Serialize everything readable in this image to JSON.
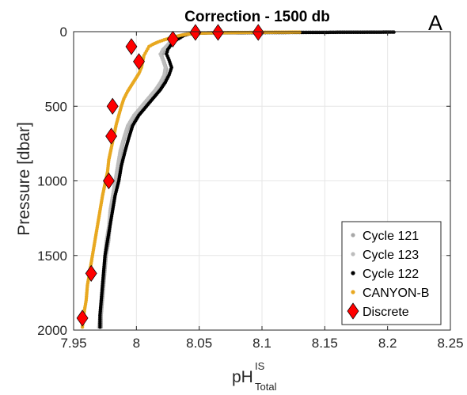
{
  "chart_data": {
    "type": "scatter",
    "title": "Correction - 1500 db",
    "panel_label": "A",
    "xlabel": {
      "main": "pH",
      "superscript": "IS",
      "subscript": "Total"
    },
    "ylabel": "Pressure [dbar]",
    "xlim": [
      7.95,
      8.25
    ],
    "ylim": [
      0,
      2000
    ],
    "y_reversed": true,
    "x_ticks": [
      7.95,
      8,
      8.05,
      8.1,
      8.15,
      8.2,
      8.25
    ],
    "x_tick_labels": [
      "7.95",
      "8",
      "8.05",
      "8.1",
      "8.15",
      "8.2",
      "8.25"
    ],
    "y_ticks": [
      0,
      500,
      1000,
      1500,
      2000
    ],
    "y_tick_labels": [
      "0",
      "500",
      "1000",
      "1500",
      "2000"
    ],
    "grid": true,
    "legend_position": "bottom-right",
    "series": [
      {
        "name": "Cycle 121",
        "marker": "dot",
        "color": "#a8a8a8",
        "points": [
          [
            8.19,
            3
          ],
          [
            8.17,
            4
          ],
          [
            8.15,
            4
          ],
          [
            8.13,
            5
          ],
          [
            8.11,
            5
          ],
          [
            8.09,
            6
          ],
          [
            8.07,
            6
          ],
          [
            8.06,
            7
          ],
          [
            8.05,
            8
          ],
          [
            8.045,
            10
          ],
          [
            8.04,
            14
          ],
          [
            8.037,
            20
          ],
          [
            8.035,
            30
          ],
          [
            8.033,
            45
          ],
          [
            8.03,
            60
          ],
          [
            8.027,
            80
          ],
          [
            8.025,
            100
          ],
          [
            8.023,
            130
          ],
          [
            8.02,
            160
          ],
          [
            8.022,
            200
          ],
          [
            8.024,
            250
          ],
          [
            8.023,
            300
          ],
          [
            8.02,
            350
          ],
          [
            8.016,
            400
          ],
          [
            8.011,
            450
          ],
          [
            8.006,
            500
          ],
          [
            8.0,
            560
          ],
          [
            7.995,
            620
          ],
          [
            7.991,
            700
          ],
          [
            7.988,
            800
          ],
          [
            7.986,
            900
          ],
          [
            7.984,
            1000
          ],
          [
            7.982,
            1100
          ],
          [
            7.98,
            1200
          ],
          [
            7.979,
            1300
          ],
          [
            7.978,
            1400
          ],
          [
            7.976,
            1500
          ],
          [
            7.975,
            1600
          ],
          [
            7.974,
            1700
          ],
          [
            7.973,
            1800
          ],
          [
            7.972,
            1900
          ],
          [
            7.972,
            1980
          ]
        ]
      },
      {
        "name": "Cycle 123",
        "marker": "dot",
        "color": "#bdbdbd",
        "points": [
          [
            8.2,
            3
          ],
          [
            8.18,
            4
          ],
          [
            8.16,
            5
          ],
          [
            8.14,
            5
          ],
          [
            8.12,
            6
          ],
          [
            8.1,
            6
          ],
          [
            8.08,
            7
          ],
          [
            8.065,
            8
          ],
          [
            8.05,
            10
          ],
          [
            8.043,
            15
          ],
          [
            8.038,
            25
          ],
          [
            8.034,
            40
          ],
          [
            8.03,
            55
          ],
          [
            8.026,
            75
          ],
          [
            8.024,
            95
          ],
          [
            8.021,
            120
          ],
          [
            8.019,
            150
          ],
          [
            8.021,
            190
          ],
          [
            8.023,
            240
          ],
          [
            8.022,
            290
          ],
          [
            8.019,
            340
          ],
          [
            8.015,
            390
          ],
          [
            8.01,
            440
          ],
          [
            8.004,
            500
          ],
          [
            7.998,
            560
          ],
          [
            7.993,
            630
          ],
          [
            7.99,
            710
          ],
          [
            7.987,
            800
          ],
          [
            7.985,
            900
          ],
          [
            7.983,
            1000
          ],
          [
            7.981,
            1100
          ],
          [
            7.979,
            1200
          ],
          [
            7.978,
            1300
          ],
          [
            7.976,
            1400
          ],
          [
            7.975,
            1500
          ],
          [
            7.974,
            1600
          ],
          [
            7.973,
            1700
          ],
          [
            7.972,
            1800
          ],
          [
            7.971,
            1900
          ],
          [
            7.97,
            1980
          ]
        ]
      },
      {
        "name": "Cycle 122",
        "marker": "dot",
        "color": "#000000",
        "points": [
          [
            8.205,
            3
          ],
          [
            8.18,
            4
          ],
          [
            8.16,
            4
          ],
          [
            8.15,
            5
          ],
          [
            8.13,
            5
          ],
          [
            8.1,
            6
          ],
          [
            8.08,
            7
          ],
          [
            8.06,
            8
          ],
          [
            8.048,
            10
          ],
          [
            8.042,
            15
          ],
          [
            8.038,
            25
          ],
          [
            8.035,
            40
          ],
          [
            8.032,
            55
          ],
          [
            8.029,
            75
          ],
          [
            8.027,
            95
          ],
          [
            8.025,
            120
          ],
          [
            8.024,
            150
          ],
          [
            8.026,
            190
          ],
          [
            8.028,
            240
          ],
          [
            8.026,
            290
          ],
          [
            8.023,
            340
          ],
          [
            8.019,
            390
          ],
          [
            8.014,
            440
          ],
          [
            8.008,
            500
          ],
          [
            8.002,
            560
          ],
          [
            7.997,
            630
          ],
          [
            7.994,
            710
          ],
          [
            7.991,
            800
          ],
          [
            7.988,
            900
          ],
          [
            7.986,
            1000
          ],
          [
            7.983,
            1100
          ],
          [
            7.981,
            1200
          ],
          [
            7.979,
            1300
          ],
          [
            7.977,
            1400
          ],
          [
            7.975,
            1500
          ],
          [
            7.974,
            1600
          ],
          [
            7.973,
            1700
          ],
          [
            7.972,
            1800
          ],
          [
            7.971,
            1900
          ],
          [
            7.971,
            1980
          ]
        ]
      },
      {
        "name": "CANYON-B",
        "marker": "dot",
        "color": "#e8a820",
        "points": [
          [
            8.13,
            3
          ],
          [
            8.11,
            4
          ],
          [
            8.095,
            5
          ],
          [
            8.08,
            6
          ],
          [
            8.07,
            7
          ],
          [
            8.06,
            8
          ],
          [
            8.05,
            10
          ],
          [
            8.042,
            15
          ],
          [
            8.035,
            25
          ],
          [
            8.028,
            40
          ],
          [
            8.022,
            55
          ],
          [
            8.017,
            70
          ],
          [
            8.013,
            85
          ],
          [
            8.01,
            100
          ],
          [
            8.008,
            130
          ],
          [
            8.006,
            160
          ],
          [
            8.005,
            200
          ],
          [
            8.004,
            240
          ],
          [
            8.002,
            280
          ],
          [
            7.999,
            320
          ],
          [
            7.996,
            360
          ],
          [
            7.993,
            400
          ],
          [
            7.99,
            450
          ],
          [
            7.988,
            500
          ],
          [
            7.986,
            560
          ],
          [
            7.984,
            620
          ],
          [
            7.982,
            700
          ],
          [
            7.98,
            780
          ],
          [
            7.978,
            860
          ],
          [
            7.977,
            940
          ],
          [
            7.975,
            1020
          ],
          [
            7.973,
            1100
          ],
          [
            7.971,
            1200
          ],
          [
            7.969,
            1300
          ],
          [
            7.967,
            1400
          ],
          [
            7.965,
            1500
          ],
          [
            7.963,
            1600
          ],
          [
            7.961,
            1700
          ],
          [
            7.96,
            1800
          ],
          [
            7.958,
            1900
          ],
          [
            7.957,
            1980
          ]
        ]
      },
      {
        "name": "Discrete",
        "marker": "diamond",
        "color": "#ff0000",
        "points": [
          [
            8.097,
            5
          ],
          [
            8.065,
            5
          ],
          [
            8.047,
            5
          ],
          [
            8.029,
            50
          ],
          [
            7.996,
            100
          ],
          [
            8.002,
            200
          ],
          [
            7.981,
            500
          ],
          [
            7.98,
            700
          ],
          [
            7.978,
            1000
          ],
          [
            7.964,
            1620
          ],
          [
            7.957,
            1920
          ]
        ]
      }
    ]
  }
}
